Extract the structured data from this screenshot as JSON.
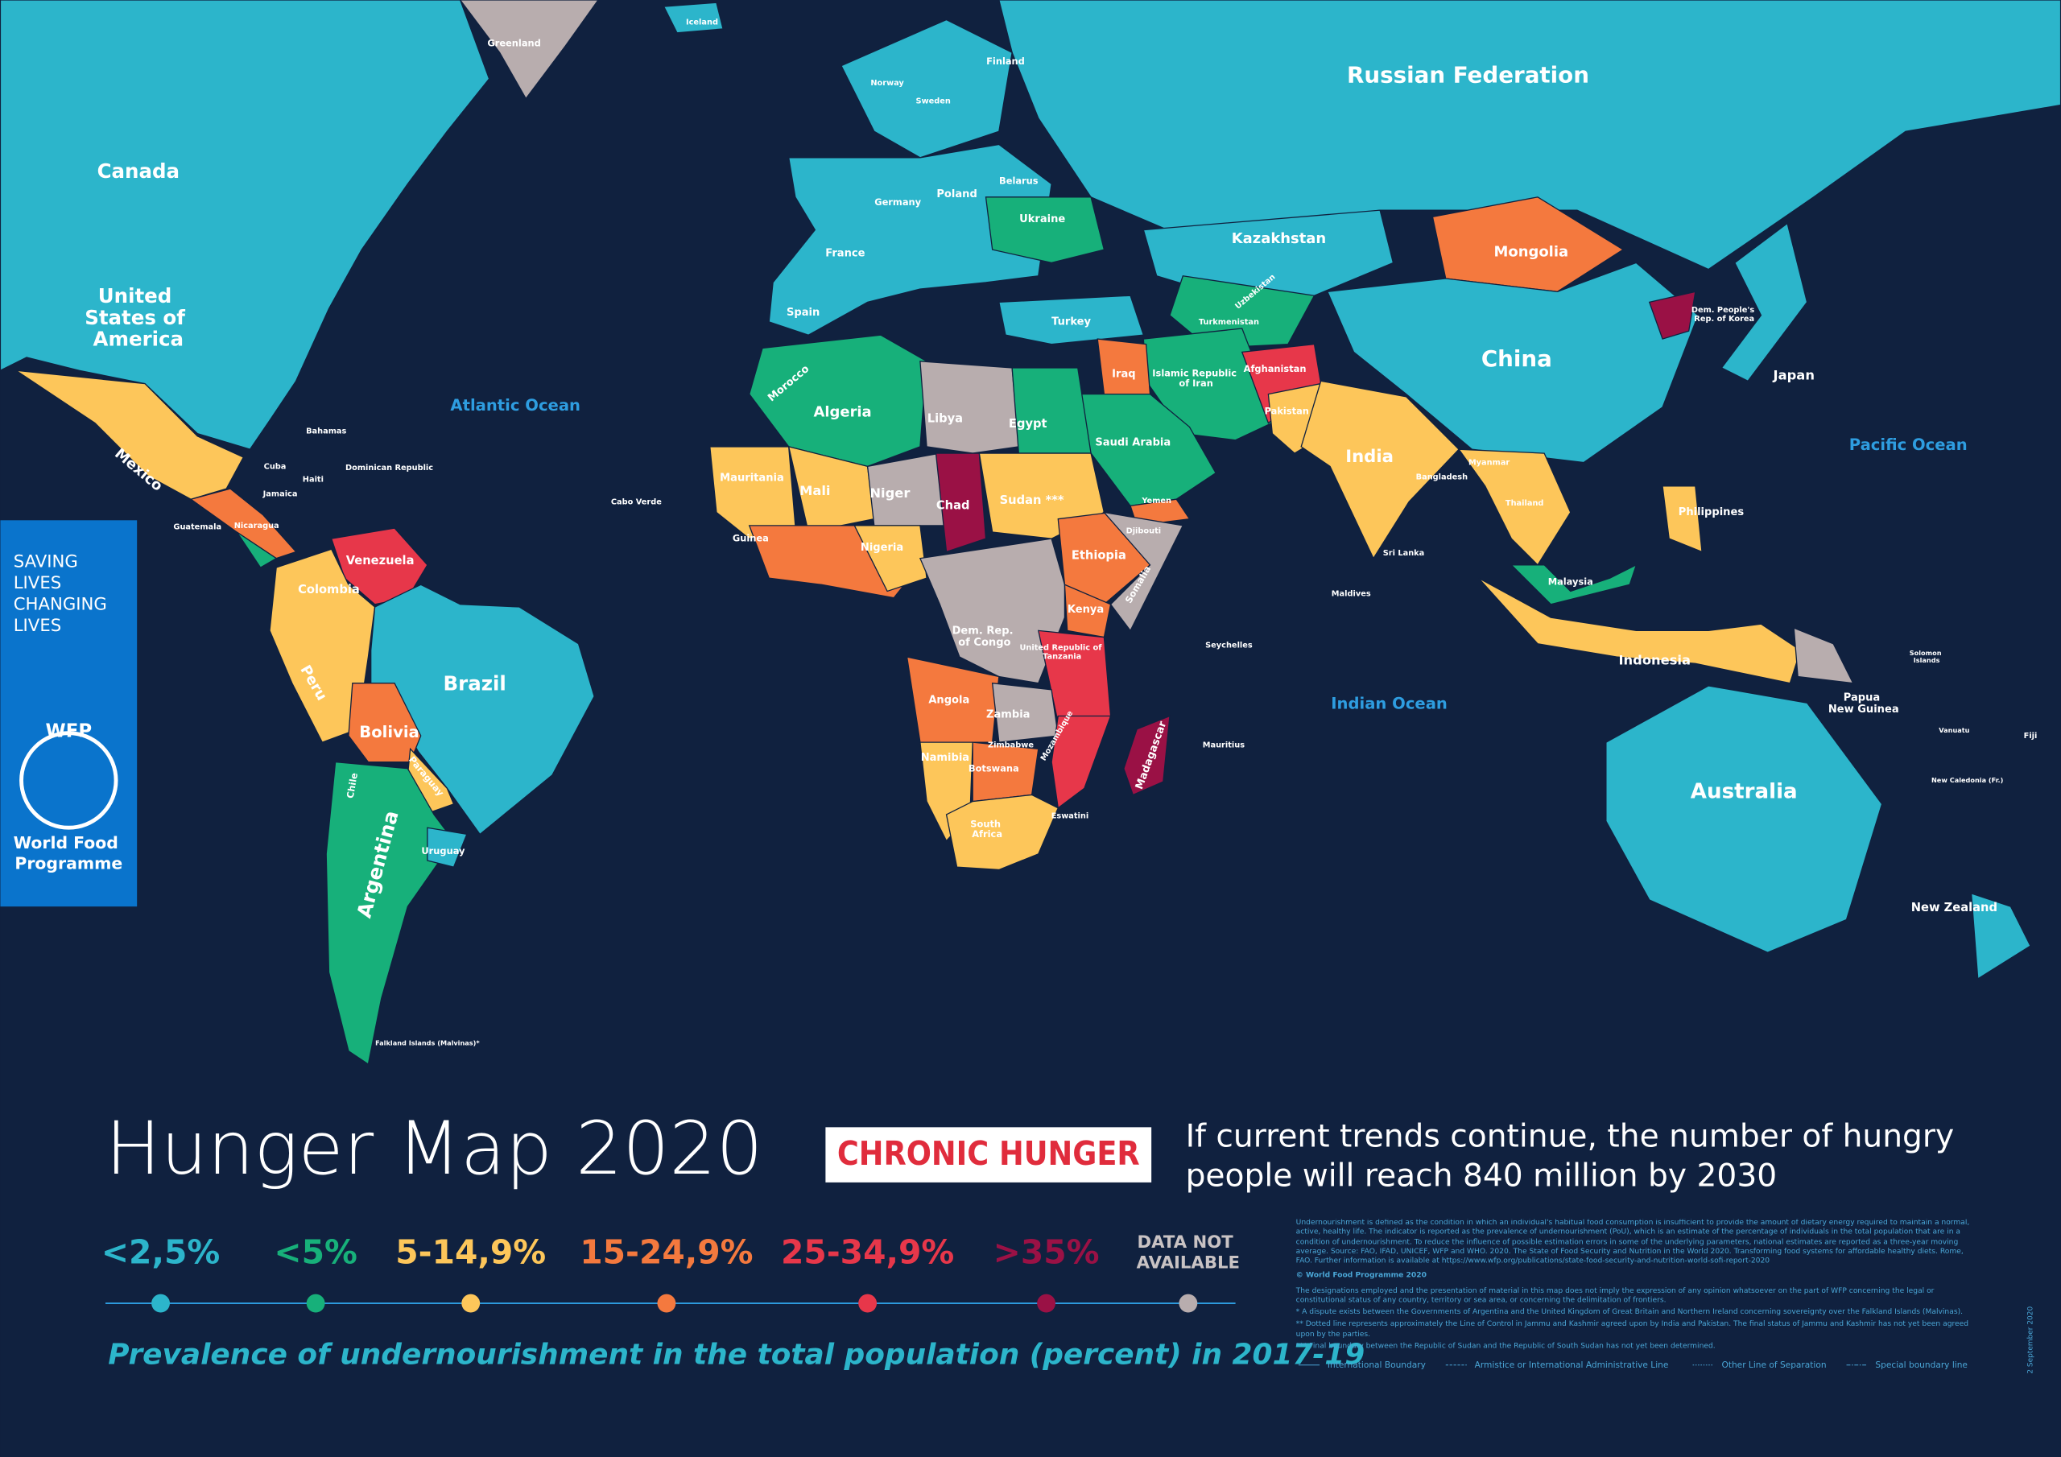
{
  "title": "Hunger Map 2020",
  "badge": "CHRONIC HUNGER",
  "headline": [
    "If current trends continue, the number of hungry",
    "people will reach 840 million by 2030"
  ],
  "sidebar": {
    "tagline": [
      "SAVING",
      "LIVES",
      "CHANGING",
      "LIVES"
    ],
    "logo": "WFP",
    "org": [
      "World Food",
      "Programme"
    ]
  },
  "legend": {
    "items": [
      {
        "label": "<2,5%",
        "color": "#2cb5cb"
      },
      {
        "label": "<5%",
        "color": "#17b07a"
      },
      {
        "label": "5-14,9%",
        "color": "#fdc65a"
      },
      {
        "label": "15-24,9%",
        "color": "#f4793e"
      },
      {
        "label": "25-34,9%",
        "color": "#e7374a"
      },
      {
        "label": ">35%",
        "color": "#9a1145"
      },
      {
        "label": "DATA NOT AVAILABLE",
        "color": "#b8adae"
      }
    ],
    "caption": "Prevalence of undernourishment in the total population (percent) in 2017-19"
  },
  "oceans": [
    "Atlantic Ocean",
    "Pacific Ocean",
    "Indian Ocean"
  ],
  "countries": [
    "Russian Federation",
    "Canada",
    "United States of America",
    "China",
    "Brazil",
    "Australia",
    "Kazakhstan",
    "Mongolia",
    "India",
    "Japan",
    "Indonesia",
    "Argentina",
    "Bolivia",
    "Peru",
    "Colombia",
    "Venezuela",
    "Mexico",
    "Algeria",
    "Libya",
    "Egypt",
    "Mali",
    "Niger",
    "Chad",
    "Sudan ***",
    "Ethiopia",
    "Nigeria",
    "Kenya",
    "Dem. Rep. of Congo",
    "Angola",
    "Zambia",
    "Namibia",
    "Botswana",
    "South Africa",
    "Madagascar",
    "Mauritania",
    "Morocco",
    "Saudi Arabia",
    "Islamic Republic of Iran",
    "Iraq",
    "Turkey",
    "Afghanistan",
    "Pakistan",
    "Ukraine",
    "Poland",
    "Germany",
    "France",
    "Spain",
    "Belarus",
    "Finland",
    "Sweden",
    "Norway",
    "Greenland",
    "Iceland",
    "Philippines",
    "Thailand",
    "Malaysia",
    "Papua New Guinea",
    "New Zealand",
    "Dem. People's Rep. of Korea",
    "Turkmenistan",
    "Uzbekistan",
    "Myanmar",
    "Bangladesh",
    "Sri Lanka",
    "Somalia",
    "Yemen",
    "United Republic of Tanzania",
    "Mozambique",
    "Zimbabwe",
    "Chile",
    "Uruguay",
    "Paraguay",
    "Guinea",
    "Cuba",
    "Haiti",
    "Dominican Republic",
    "Jamaica",
    "Guatemala",
    "Nicaragua",
    "Bahamas",
    "Falkland Islands (Malvinas)*",
    "Cabo Verde",
    "Maldives",
    "Mauritius",
    "Seychelles",
    "Eswatini",
    "Djibouti",
    "Fiji",
    "Solomon Islands",
    "Vanuatu",
    "New Caledonia (Fr.)"
  ],
  "notes": [
    "Undernourishment is defined as the condition in which an individual's habitual food consumption is insufficient to provide the amount of dietary energy required to maintain a normal, active, healthy life. The indicator is reported as the prevalence of undernourishment (PoU), which is an estimate of the percentage of individuals in the total population that are in a condition of undernourishment. To reduce the influence of possible estimation errors in some of the underlying parameters, national estimates are reported as a three-year moving average. Source: FAO, IFAD, UNICEF, WFP and WHO. 2020. The State of Food Security and Nutrition in the World 2020. Transforming food systems for affordable healthy diets. Rome, FAO. Further information is available at https://www.wfp.org/publications/state-food-security-and-nutrition-world-sofi-report-2020",
    "© World Food Programme 2020",
    "The designations employed and the presentation of material in this map does not imply the expression of any opinion whatsoever on the part of WFP concerning the legal or constitutional status of any country, territory or sea area, or concerning the delimitation of frontiers.",
    "* A dispute exists between the Governments of Argentina and the United Kingdom of Great Britain and Northern Ireland concerning sovereignty over the Falkland Islands (Malvinas).",
    "** Dotted line represents approximately the Line of Control in Jammu and Kashmir agreed upon by India and Pakistan. The final status of Jammu and Kashmir has not yet been agreed upon by the parties.",
    "*** Final boundary between the Republic of Sudan and the Republic of South Sudan has not yet been determined."
  ],
  "line_types": [
    "International Boundary",
    "Armistice or International Administrative Line",
    "Other Line of Separation",
    "Special boundary line"
  ],
  "date": "2 September 2020"
}
